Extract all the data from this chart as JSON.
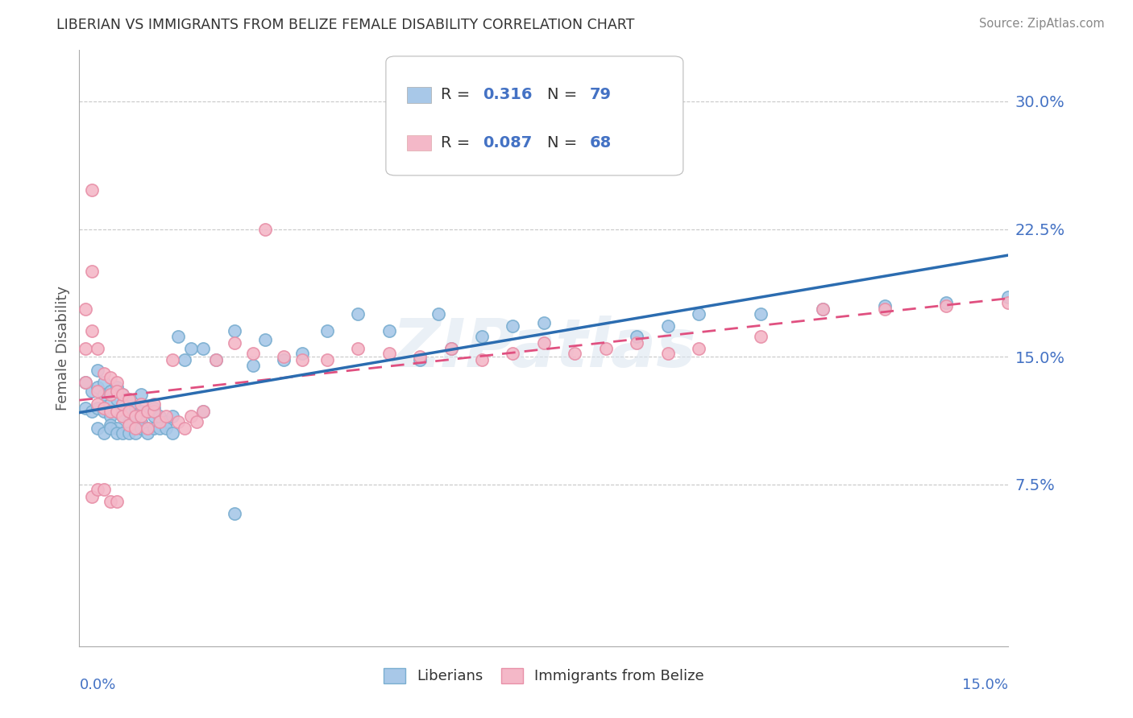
{
  "title": "LIBERIAN VS IMMIGRANTS FROM BELIZE FEMALE DISABILITY CORRELATION CHART",
  "source": "Source: ZipAtlas.com",
  "ylabel": "Female Disability",
  "xlim": [
    0.0,
    0.15
  ],
  "ylim": [
    -0.02,
    0.33
  ],
  "yticks": [
    0.075,
    0.15,
    0.225,
    0.3
  ],
  "ytick_labels": [
    "7.5%",
    "15.0%",
    "22.5%",
    "30.0%"
  ],
  "blue_color": "#a8c8e8",
  "pink_color": "#f4b8c8",
  "blue_outline": "#7aaed0",
  "pink_outline": "#e890a8",
  "blue_line_color": "#2b6cb0",
  "pink_line_color": "#e05080",
  "text_color_blue": "#4472c4",
  "legend_val_color": "#4472c4",
  "label1": "Liberians",
  "label2": "Immigrants from Belize",
  "blue_R": "0.316",
  "blue_N": "79",
  "pink_R": "0.087",
  "pink_N": "68",
  "blue_scatter_x": [
    0.001,
    0.001,
    0.002,
    0.002,
    0.003,
    0.003,
    0.003,
    0.004,
    0.004,
    0.004,
    0.005,
    0.005,
    0.005,
    0.005,
    0.006,
    0.006,
    0.006,
    0.006,
    0.007,
    0.007,
    0.007,
    0.008,
    0.008,
    0.008,
    0.009,
    0.009,
    0.01,
    0.01,
    0.01,
    0.011,
    0.011,
    0.012,
    0.012,
    0.013,
    0.014,
    0.015,
    0.016,
    0.017,
    0.018,
    0.02,
    0.022,
    0.025,
    0.028,
    0.03,
    0.033,
    0.036,
    0.04,
    0.045,
    0.05,
    0.055,
    0.058,
    0.06,
    0.065,
    0.07,
    0.075,
    0.08,
    0.09,
    0.095,
    0.1,
    0.11,
    0.12,
    0.13,
    0.14,
    0.15,
    0.003,
    0.004,
    0.005,
    0.006,
    0.007,
    0.008,
    0.009,
    0.01,
    0.011,
    0.012,
    0.013,
    0.014,
    0.015,
    0.02,
    0.025
  ],
  "blue_scatter_y": [
    0.135,
    0.12,
    0.13,
    0.118,
    0.132,
    0.12,
    0.142,
    0.128,
    0.118,
    0.135,
    0.122,
    0.115,
    0.13,
    0.11,
    0.125,
    0.118,
    0.132,
    0.108,
    0.122,
    0.115,
    0.128,
    0.118,
    0.112,
    0.125,
    0.12,
    0.115,
    0.128,
    0.118,
    0.112,
    0.118,
    0.108,
    0.115,
    0.12,
    0.115,
    0.112,
    0.115,
    0.162,
    0.148,
    0.155,
    0.155,
    0.148,
    0.165,
    0.145,
    0.16,
    0.148,
    0.152,
    0.165,
    0.175,
    0.165,
    0.148,
    0.175,
    0.155,
    0.162,
    0.168,
    0.17,
    0.27,
    0.162,
    0.168,
    0.175,
    0.175,
    0.178,
    0.18,
    0.182,
    0.185,
    0.108,
    0.105,
    0.108,
    0.105,
    0.105,
    0.105,
    0.105,
    0.108,
    0.105,
    0.108,
    0.108,
    0.108,
    0.105,
    0.118,
    0.058
  ],
  "pink_scatter_x": [
    0.001,
    0.001,
    0.001,
    0.002,
    0.002,
    0.002,
    0.003,
    0.003,
    0.003,
    0.004,
    0.004,
    0.005,
    0.005,
    0.005,
    0.006,
    0.006,
    0.006,
    0.007,
    0.007,
    0.007,
    0.008,
    0.008,
    0.008,
    0.009,
    0.009,
    0.01,
    0.01,
    0.011,
    0.011,
    0.012,
    0.012,
    0.013,
    0.014,
    0.015,
    0.016,
    0.017,
    0.018,
    0.019,
    0.02,
    0.022,
    0.025,
    0.028,
    0.03,
    0.033,
    0.036,
    0.04,
    0.045,
    0.05,
    0.055,
    0.06,
    0.065,
    0.07,
    0.075,
    0.08,
    0.085,
    0.09,
    0.095,
    0.1,
    0.11,
    0.12,
    0.13,
    0.14,
    0.15,
    0.002,
    0.003,
    0.004,
    0.005,
    0.006
  ],
  "pink_scatter_y": [
    0.135,
    0.155,
    0.178,
    0.165,
    0.2,
    0.248,
    0.13,
    0.155,
    0.122,
    0.14,
    0.12,
    0.128,
    0.138,
    0.118,
    0.135,
    0.118,
    0.13,
    0.122,
    0.115,
    0.128,
    0.118,
    0.11,
    0.125,
    0.115,
    0.108,
    0.122,
    0.115,
    0.118,
    0.108,
    0.118,
    0.122,
    0.112,
    0.115,
    0.148,
    0.112,
    0.108,
    0.115,
    0.112,
    0.118,
    0.148,
    0.158,
    0.152,
    0.225,
    0.15,
    0.148,
    0.148,
    0.155,
    0.152,
    0.15,
    0.155,
    0.148,
    0.152,
    0.158,
    0.152,
    0.155,
    0.158,
    0.152,
    0.155,
    0.162,
    0.178,
    0.178,
    0.18,
    0.182,
    0.068,
    0.072,
    0.072,
    0.065,
    0.065
  ],
  "watermark": "ZIPatlas",
  "background_color": "#ffffff",
  "grid_color": "#c8c8c8"
}
